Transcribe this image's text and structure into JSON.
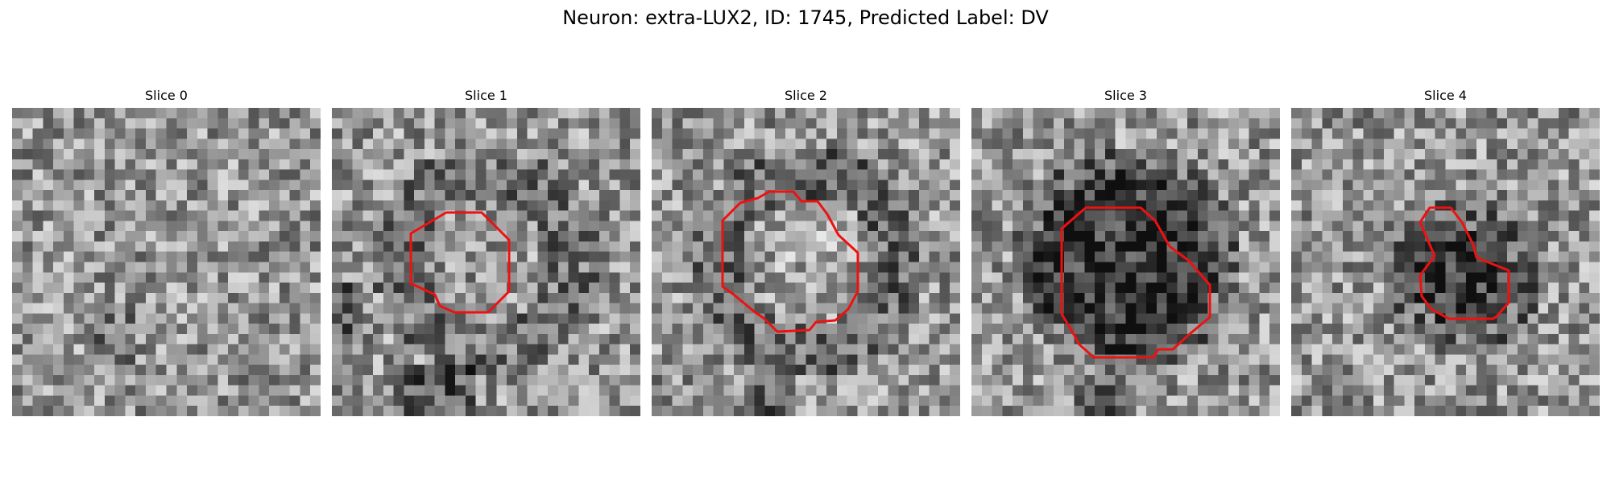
{
  "figure": {
    "title": "Neuron: extra-LUX2, ID: 1745, Predicted Label: DV"
  },
  "colors": {
    "contour": "#ee1111",
    "background": "#ffffff"
  },
  "panels": [
    {
      "title": "Slice 0",
      "seed": 11,
      "dark_spot": null,
      "contour": null
    },
    {
      "title": "Slice 1",
      "seed": 23,
      "dark_spot": "ring-light",
      "contour": "slice1"
    },
    {
      "title": "Slice 2",
      "seed": 37,
      "dark_spot": "ring-large",
      "contour": "slice2"
    },
    {
      "title": "Slice 3",
      "seed": 51,
      "dark_spot": "dark-large",
      "contour": "slice3"
    },
    {
      "title": "Slice 4",
      "seed": 67,
      "dark_spot": "dark-small",
      "contour": "slice4"
    }
  ]
}
